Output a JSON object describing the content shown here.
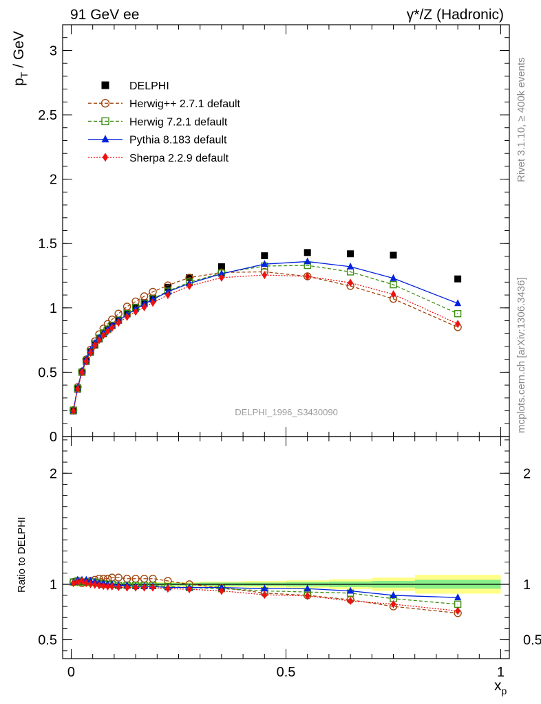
{
  "header": {
    "left": "91 GeV ee",
    "right": "γ*/Z (Hadronic)"
  },
  "side_text": {
    "rivet": "Rivet 3.1.10, ≥ 400k events",
    "source": "mcplots.cern.ch [arXiv:1306.3436]"
  },
  "watermark": "DELPHI_1996_S3430090",
  "axes": {
    "ylabel_main_base": "p",
    "ylabel_main_sub": "T",
    "ylabel_main_unit": "/ GeV",
    "ylabel_ratio": "Ratio to DELPHI",
    "xlabel_base": "x",
    "xlabel_sub": "p"
  },
  "colors": {
    "data": "#000000",
    "herwigpp": "#a0440c",
    "herwig7": "#3d8f12",
    "pythia": "#0022dd",
    "sherpa": "#ee1111",
    "band_inner": "#88ee88",
    "band_outer": "#ffff88"
  },
  "chart_data": [
    {
      "type": "line",
      "panel": "main",
      "xlim": [
        -0.02,
        1.02
      ],
      "ylim": [
        0,
        3.2
      ],
      "x_ticks": [
        0,
        0.5,
        1
      ],
      "y_ticks": [
        {
          "v": 0,
          "label": "0"
        },
        {
          "v": 0.5,
          "label": "0.5"
        },
        {
          "v": 1,
          "label": "1"
        },
        {
          "v": 1.5,
          "label": "1.5"
        },
        {
          "v": 2,
          "label": "2"
        },
        {
          "v": 2.5,
          "label": "2.5"
        },
        {
          "v": 3,
          "label": "3"
        }
      ],
      "legend_position": "top-left",
      "x": [
        0.005,
        0.015,
        0.025,
        0.035,
        0.045,
        0.055,
        0.065,
        0.075,
        0.085,
        0.095,
        0.11,
        0.13,
        0.15,
        0.17,
        0.19,
        0.225,
        0.275,
        0.35,
        0.45,
        0.55,
        0.65,
        0.75,
        0.9
      ],
      "series": [
        {
          "name": "DELPHI",
          "key": "data",
          "marker": "square-filled",
          "line": "none",
          "values": [
            0.2,
            0.37,
            0.5,
            0.585,
            0.655,
            0.712,
            0.758,
            0.8,
            0.832,
            0.862,
            0.905,
            0.958,
            1.005,
            1.04,
            1.075,
            1.16,
            1.235,
            1.32,
            1.405,
            1.43,
            1.42,
            1.41,
            1.225
          ]
        },
        {
          "name": "Herwig++ 2.7.1 default",
          "key": "herwigpp",
          "marker": "circle-open",
          "line": "dashed",
          "values": [
            0.205,
            0.385,
            0.505,
            0.6,
            0.675,
            0.74,
            0.795,
            0.84,
            0.875,
            0.91,
            0.955,
            1.01,
            1.05,
            1.09,
            1.125,
            1.175,
            1.235,
            1.275,
            1.28,
            1.245,
            1.17,
            1.07,
            0.85
          ]
        },
        {
          "name": "Herwig 7.2.1 default",
          "key": "herwig7",
          "marker": "square-open",
          "line": "dashed",
          "values": [
            0.205,
            0.375,
            0.5,
            0.59,
            0.66,
            0.72,
            0.765,
            0.805,
            0.835,
            0.865,
            0.905,
            0.955,
            1.0,
            1.035,
            1.07,
            1.13,
            1.2,
            1.27,
            1.325,
            1.33,
            1.28,
            1.18,
            0.955
          ]
        },
        {
          "name": "Pythia 8.183 default",
          "key": "pythia",
          "marker": "triangle-filled",
          "line": "solid",
          "values": [
            0.205,
            0.38,
            0.51,
            0.6,
            0.67,
            0.725,
            0.768,
            0.805,
            0.835,
            0.862,
            0.9,
            0.948,
            0.99,
            1.03,
            1.065,
            1.125,
            1.19,
            1.265,
            1.34,
            1.36,
            1.32,
            1.23,
            1.035
          ]
        },
        {
          "name": "Sherpa 2.2.9 default",
          "key": "sherpa",
          "marker": "diamond-filled",
          "line": "dotted",
          "values": [
            0.2,
            0.37,
            0.5,
            0.585,
            0.652,
            0.708,
            0.75,
            0.788,
            0.818,
            0.845,
            0.885,
            0.93,
            0.97,
            1.005,
            1.04,
            1.1,
            1.17,
            1.235,
            1.255,
            1.245,
            1.195,
            1.105,
            0.875
          ]
        }
      ]
    },
    {
      "type": "line",
      "panel": "ratio",
      "xlim": [
        -0.02,
        1.02
      ],
      "ylim": [
        0.33,
        2.33
      ],
      "x_ticks": [
        {
          "v": 0,
          "label": "0"
        },
        {
          "v": 0.5,
          "label": "0.5"
        },
        {
          "v": 1,
          "label": "1"
        }
      ],
      "y_ticks": [
        {
          "v": 0.5,
          "label": "0.5"
        },
        {
          "v": 1,
          "label": "1"
        },
        {
          "v": 2,
          "label": "2"
        }
      ],
      "band_bins": [
        {
          "lo": 0.0,
          "hi": 0.1,
          "inner": 0.012,
          "outer": 0.02
        },
        {
          "lo": 0.1,
          "hi": 0.3,
          "inner": 0.012,
          "outer": 0.02
        },
        {
          "lo": 0.3,
          "hi": 0.4,
          "inner": 0.015,
          "outer": 0.025
        },
        {
          "lo": 0.4,
          "hi": 0.5,
          "inner": 0.015,
          "outer": 0.03
        },
        {
          "lo": 0.5,
          "hi": 0.6,
          "inner": 0.02,
          "outer": 0.035
        },
        {
          "lo": 0.6,
          "hi": 0.7,
          "inner": 0.025,
          "outer": 0.045
        },
        {
          "lo": 0.7,
          "hi": 0.8,
          "inner": 0.03,
          "outer": 0.06
        },
        {
          "lo": 0.8,
          "hi": 1.0,
          "inner": 0.04,
          "outer": 0.085
        }
      ],
      "x": [
        0.005,
        0.015,
        0.025,
        0.035,
        0.045,
        0.055,
        0.065,
        0.075,
        0.085,
        0.095,
        0.11,
        0.13,
        0.15,
        0.17,
        0.19,
        0.225,
        0.275,
        0.35,
        0.45,
        0.55,
        0.65,
        0.75,
        0.9
      ],
      "series": [
        {
          "name": "Herwig++ 2.7.1 default",
          "key": "herwigpp",
          "marker": "circle-open",
          "line": "dashed",
          "values": [
            1.02,
            1.03,
            1.01,
            1.02,
            1.03,
            1.04,
            1.05,
            1.05,
            1.05,
            1.06,
            1.06,
            1.05,
            1.05,
            1.05,
            1.05,
            1.03,
            1.0,
            0.97,
            0.92,
            0.9,
            0.86,
            0.8,
            0.74
          ]
        },
        {
          "name": "Herwig 7.2.1 default",
          "key": "herwig7",
          "marker": "square-open",
          "line": "dashed",
          "values": [
            1.02,
            1.03,
            1.02,
            1.02,
            1.02,
            1.02,
            1.01,
            1.0,
            1.0,
            1.0,
            0.99,
            0.99,
            0.99,
            0.99,
            0.99,
            0.98,
            0.97,
            0.96,
            0.94,
            0.93,
            0.92,
            0.87,
            0.82
          ]
        },
        {
          "name": "Pythia 8.183 default",
          "key": "pythia",
          "marker": "triangle-filled",
          "line": "solid",
          "values": [
            1.02,
            1.04,
            1.04,
            1.04,
            1.03,
            1.02,
            1.01,
            1.01,
            1.0,
            1.0,
            0.99,
            0.99,
            0.98,
            0.98,
            0.98,
            0.97,
            0.97,
            0.97,
            0.96,
            0.96,
            0.94,
            0.9,
            0.88
          ]
        },
        {
          "name": "Sherpa 2.2.9 default",
          "key": "sherpa",
          "marker": "diamond-filled",
          "line": "dotted",
          "values": [
            1.01,
            1.02,
            1.03,
            1.01,
            1.0,
            0.995,
            0.99,
            0.985,
            0.98,
            0.98,
            0.975,
            0.97,
            0.97,
            0.97,
            0.97,
            0.96,
            0.955,
            0.94,
            0.905,
            0.895,
            0.85,
            0.82,
            0.76
          ]
        }
      ]
    }
  ]
}
